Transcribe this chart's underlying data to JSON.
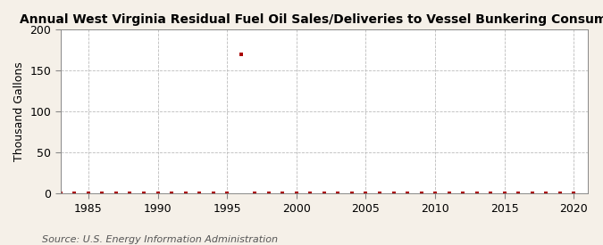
{
  "title": "Annual West Virginia Residual Fuel Oil Sales/Deliveries to Vessel Bunkering Consumers",
  "ylabel": "Thousand Gallons",
  "source_text": "Source: U.S. Energy Information Administration",
  "background_color": "#f5f0e8",
  "plot_background_color": "#ffffff",
  "xlim": [
    1983,
    2021
  ],
  "ylim": [
    0,
    200
  ],
  "yticks": [
    0,
    50,
    100,
    150,
    200
  ],
  "xticks": [
    1985,
    1990,
    1995,
    2000,
    2005,
    2010,
    2015,
    2020
  ],
  "data_x": [
    1983,
    1984,
    1985,
    1986,
    1987,
    1988,
    1989,
    1990,
    1991,
    1992,
    1993,
    1994,
    1995,
    1996,
    1997,
    1998,
    1999,
    2000,
    2001,
    2002,
    2003,
    2004,
    2005,
    2006,
    2007,
    2008,
    2009,
    2010,
    2011,
    2012,
    2013,
    2014,
    2015,
    2016,
    2017,
    2018,
    2019,
    2020
  ],
  "data_y": [
    0,
    0,
    0,
    0,
    0,
    0,
    0,
    0,
    0,
    0,
    0,
    0,
    0,
    170,
    0,
    0,
    0,
    0,
    0,
    0,
    0,
    0,
    0,
    0,
    0,
    0,
    0,
    0,
    0,
    0,
    0,
    0,
    0,
    0,
    0,
    0,
    0,
    0
  ],
  "marker_color": "#aa0000",
  "marker": "s",
  "marker_size": 3,
  "title_fontsize": 10,
  "axis_fontsize": 9,
  "tick_fontsize": 9,
  "source_fontsize": 8,
  "grid_color": "#bbbbbb",
  "grid_linestyle": "--",
  "grid_linewidth": 0.6
}
